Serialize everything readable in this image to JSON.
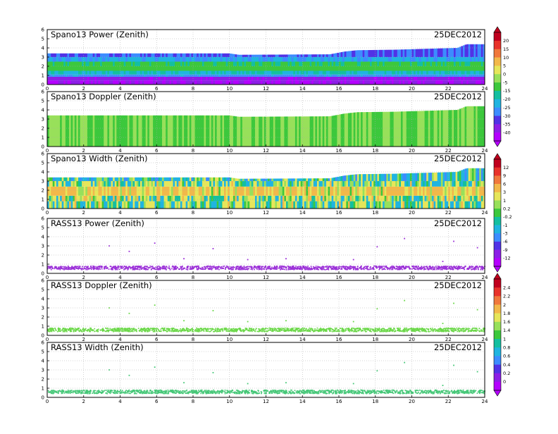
{
  "chart_data": [
    {
      "type": "heatmap",
      "title": "Spano13 Power (Zenith)",
      "date": "25DEC2012",
      "xlim": [
        0,
        24
      ],
      "ylim": [
        0,
        6
      ],
      "x_ticks": [
        0,
        2,
        4,
        6,
        8,
        10,
        12,
        14,
        16,
        18,
        20,
        22,
        24
      ],
      "y_ticks": [
        0,
        1,
        2,
        3,
        4,
        5,
        6
      ],
      "grid": true,
      "top_height_km": [
        [
          0,
          3.4
        ],
        [
          10,
          3.4
        ],
        [
          10.5,
          3.25
        ],
        [
          15.5,
          3.3
        ],
        [
          16.3,
          3.6
        ],
        [
          17,
          3.75
        ],
        [
          19,
          3.8
        ],
        [
          22.5,
          4.0
        ],
        [
          23,
          4.4
        ],
        [
          24,
          4.4
        ]
      ],
      "layers": [
        {
          "y": [
            0.0,
            0.45
          ],
          "value": -40
        },
        {
          "y": [
            0.45,
            0.85
          ],
          "value": -38
        },
        {
          "y": [
            0.85,
            1.1
          ],
          "value": -27
        },
        {
          "y": [
            1.1,
            1.5
          ],
          "value": -20
        },
        {
          "y": [
            1.5,
            2.0
          ],
          "value": -10
        },
        {
          "y": [
            2.0,
            2.5
          ],
          "value": -14
        },
        {
          "y": [
            2.5,
            3.0
          ],
          "value": -24
        },
        {
          "y": [
            3.0,
            4.4
          ],
          "value": -30
        }
      ],
      "colorbar": {
        "labels": [
          "20",
          "15",
          "10",
          "5",
          "0",
          "-5",
          "-15",
          "-20",
          "-25",
          "-30",
          "-35",
          "-40"
        ],
        "colors": [
          "#c0001e",
          "#e8322a",
          "#f0783c",
          "#f2b84a",
          "#e6e65a",
          "#98e05a",
          "#3cc83c",
          "#14bfa0",
          "#20b4e0",
          "#3c8cff",
          "#5032e6",
          "#8c1ee6",
          "#b400ff"
        ]
      }
    },
    {
      "type": "heatmap",
      "title": "Spano13 Doppler (Zenith)",
      "date": "25DEC2012",
      "xlim": [
        0,
        24
      ],
      "ylim": [
        0,
        6
      ],
      "x_ticks": [
        0,
        2,
        4,
        6,
        8,
        10,
        12,
        14,
        16,
        18,
        20,
        22,
        24
      ],
      "y_ticks": [
        0,
        1,
        2,
        3,
        4,
        5,
        6
      ],
      "grid": true,
      "top_height_km": [
        [
          0,
          3.4
        ],
        [
          10,
          3.4
        ],
        [
          10.5,
          3.25
        ],
        [
          15.5,
          3.3
        ],
        [
          16.3,
          3.6
        ],
        [
          17,
          3.75
        ],
        [
          19,
          3.8
        ],
        [
          22.5,
          4.0
        ],
        [
          23,
          4.4
        ],
        [
          24,
          4.4
        ]
      ],
      "layers": [
        {
          "y": [
            0.0,
            4.4
          ],
          "value": -5
        }
      ]
    },
    {
      "type": "heatmap",
      "title": "Spano13 Width (Zenith)",
      "date": "25DEC2012",
      "xlim": [
        0,
        24
      ],
      "ylim": [
        0,
        6
      ],
      "x_ticks": [
        0,
        2,
        4,
        6,
        8,
        10,
        12,
        14,
        16,
        18,
        20,
        22,
        24
      ],
      "y_ticks": [
        0,
        1,
        2,
        3,
        4,
        5,
        6
      ],
      "grid": true,
      "top_height_km": [
        [
          0,
          3.4
        ],
        [
          10,
          3.4
        ],
        [
          10.5,
          3.25
        ],
        [
          15.5,
          3.3
        ],
        [
          16.3,
          3.6
        ],
        [
          17,
          3.75
        ],
        [
          19,
          3.8
        ],
        [
          22.5,
          4.0
        ],
        [
          23,
          4.4
        ],
        [
          24,
          4.4
        ]
      ],
      "layers": [
        {
          "y": [
            0.0,
            0.8
          ],
          "value": 0.2
        },
        {
          "y": [
            0.8,
            1.4
          ],
          "value": 1
        },
        {
          "y": [
            1.4,
            2.4
          ],
          "value": 3
        },
        {
          "y": [
            2.4,
            3.0
          ],
          "value": 0.2
        },
        {
          "y": [
            3.0,
            4.4
          ],
          "value": -1
        }
      ],
      "colorbar": {
        "labels": [
          "12",
          "9",
          "6",
          "3",
          "1",
          "0.2",
          "-0.2",
          "-1",
          "-3",
          "-6",
          "-9",
          "-12"
        ],
        "colors": [
          "#c0001e",
          "#e8322a",
          "#f0783c",
          "#f2b84a",
          "#e6e65a",
          "#98e05a",
          "#3cc83c",
          "#14bfa0",
          "#20b4e0",
          "#3c8cff",
          "#5032e6",
          "#8c1ee6",
          "#b400ff"
        ]
      }
    },
    {
      "type": "scatter",
      "title": "RASS13 Power (Zenith)",
      "date": "25DEC2012",
      "xlim": [
        0,
        24
      ],
      "ylim": [
        0,
        6
      ],
      "x_ticks": [
        0,
        2,
        4,
        6,
        8,
        10,
        12,
        14,
        16,
        18,
        20,
        22,
        24
      ],
      "y_ticks": [
        0,
        1,
        2,
        3,
        4,
        5,
        6
      ],
      "grid": true,
      "band_height_km": [
        0.4,
        0.8
      ],
      "color": "#9b30d8",
      "scattered_points": [
        [
          3.4,
          3.0
        ],
        [
          4.5,
          2.4
        ],
        [
          5.9,
          3.3
        ],
        [
          7.5,
          1.6
        ],
        [
          9.1,
          2.7
        ],
        [
          11.0,
          1.5
        ],
        [
          13.1,
          1.6
        ],
        [
          16.8,
          1.5
        ],
        [
          18.1,
          2.9
        ],
        [
          19.6,
          3.8
        ],
        [
          21.7,
          1.3
        ],
        [
          22.3,
          3.5
        ],
        [
          23.6,
          2.8
        ]
      ]
    },
    {
      "type": "scatter",
      "title": "RASS13 Doppler (Zenith)",
      "date": "25DEC2012",
      "xlim": [
        0,
        24
      ],
      "ylim": [
        0,
        6
      ],
      "x_ticks": [
        0,
        2,
        4,
        6,
        8,
        10,
        12,
        14,
        16,
        18,
        20,
        22,
        24
      ],
      "y_ticks": [
        0,
        1,
        2,
        3,
        4,
        5,
        6
      ],
      "grid": true,
      "band_height_km": [
        0.4,
        0.8
      ],
      "color": "#6cd84a",
      "scattered_points": [
        [
          3.4,
          3.0
        ],
        [
          4.5,
          2.4
        ],
        [
          5.9,
          3.3
        ],
        [
          7.5,
          1.6
        ],
        [
          9.1,
          2.7
        ],
        [
          11.0,
          1.5
        ],
        [
          13.1,
          1.6
        ],
        [
          16.8,
          1.5
        ],
        [
          18.1,
          2.9
        ],
        [
          19.6,
          3.8
        ],
        [
          21.7,
          1.3
        ],
        [
          22.3,
          3.5
        ],
        [
          23.6,
          2.8
        ]
      ],
      "colorbar": {
        "labels": [
          "2.4",
          "2.2",
          "2",
          "1.8",
          "1.6",
          "1.4",
          "1",
          "0.8",
          "0.6",
          "0.4",
          "0.2",
          "0"
        ],
        "colors": [
          "#c0001e",
          "#e8322a",
          "#f0783c",
          "#f2b84a",
          "#e6e65a",
          "#98e05a",
          "#3cc83c",
          "#14bfa0",
          "#20b4e0",
          "#3c8cff",
          "#5032e6",
          "#8c1ee6",
          "#b400ff"
        ]
      }
    },
    {
      "type": "scatter",
      "title": "RASS13 Width (Zenith)",
      "date": "25DEC2012",
      "xlim": [
        0,
        24
      ],
      "ylim": [
        0,
        6
      ],
      "x_ticks": [
        0,
        2,
        4,
        6,
        8,
        10,
        12,
        14,
        16,
        18,
        20,
        22,
        24
      ],
      "y_ticks": [
        0,
        1,
        2,
        3,
        4,
        5,
        6
      ],
      "grid": true,
      "band_height_km": [
        0.4,
        0.8
      ],
      "color": "#46c878",
      "scattered_points": [
        [
          3.4,
          3.0
        ],
        [
          4.5,
          2.4
        ],
        [
          5.9,
          3.3
        ],
        [
          7.5,
          1.6
        ],
        [
          9.1,
          2.7
        ],
        [
          11.0,
          1.5
        ],
        [
          13.1,
          1.6
        ],
        [
          16.8,
          1.5
        ],
        [
          18.1,
          2.9
        ],
        [
          19.6,
          3.8
        ],
        [
          21.7,
          1.3
        ],
        [
          22.3,
          3.5
        ],
        [
          23.6,
          2.8
        ]
      ]
    }
  ]
}
